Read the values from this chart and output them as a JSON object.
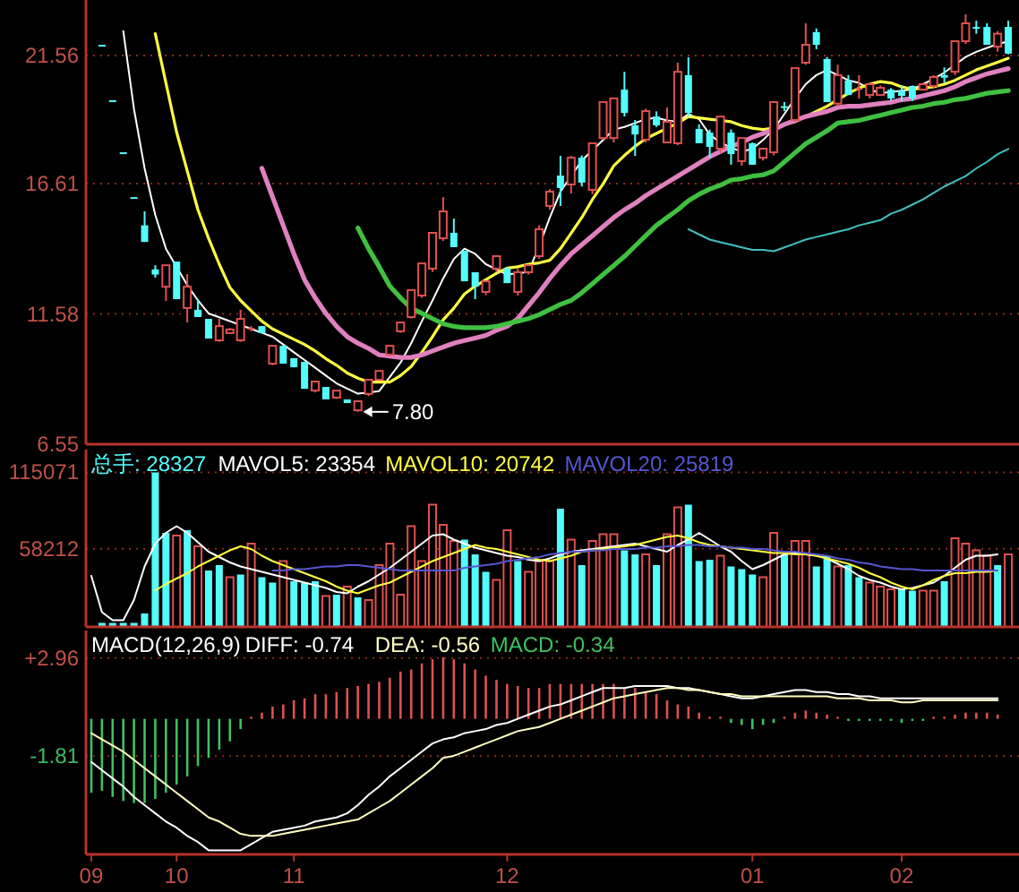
{
  "chart_data": [
    {
      "type": "candlestick",
      "categories": [
        null,
        null,
        null,
        null,
        null,
        null,
        null,
        null,
        null,
        null,
        null,
        null,
        null,
        null,
        null,
        null,
        null,
        null,
        null,
        null,
        null,
        null,
        null,
        null,
        null,
        null,
        null,
        null,
        null,
        null,
        null,
        null,
        null,
        null,
        null,
        null,
        null,
        null,
        null,
        null,
        null,
        null,
        null,
        null,
        null,
        null,
        null,
        null,
        null,
        null,
        null,
        null,
        null,
        null,
        null,
        null,
        null,
        null,
        null,
        null,
        null,
        null,
        null,
        null,
        null,
        null,
        null,
        null,
        null,
        null,
        null,
        null,
        null,
        null,
        null,
        null,
        null,
        null,
        null,
        null,
        null,
        null,
        null,
        null,
        null,
        null,
        null
      ],
      "ohlc": [
        null,
        [
          21.97,
          21.97,
          21.97,
          21.97
        ],
        [
          19.83,
          19.83,
          19.83,
          19.83
        ],
        [
          17.82,
          17.82,
          17.82,
          17.82
        ],
        [
          16.09,
          16.09,
          16.09,
          16.09
        ],
        [
          15.0,
          15.54,
          14.36,
          14.36
        ],
        [
          13.3,
          13.46,
          12.98,
          13.1
        ],
        [
          12.63,
          13.46,
          12.08,
          13.46
        ],
        [
          13.6,
          13.6,
          12.15,
          12.15
        ],
        [
          11.81,
          13.12,
          11.25,
          12.63
        ],
        [
          11.74,
          12.15,
          11.46,
          11.46
        ],
        [
          11.39,
          11.39,
          10.63,
          10.63
        ],
        [
          10.56,
          11.39,
          10.5,
          11.11
        ],
        [
          10.84,
          11.04,
          10.84,
          10.98
        ],
        [
          10.56,
          11.74,
          10.5,
          11.39
        ],
        [
          11.04,
          11.11,
          10.91,
          11.04
        ],
        [
          11.11,
          11.11,
          10.84,
          10.84
        ],
        [
          9.66,
          10.35,
          9.6,
          10.35
        ],
        [
          10.35,
          10.35,
          9.66,
          9.66
        ],
        [
          9.87,
          9.87,
          9.52,
          9.52
        ],
        [
          9.73,
          9.73,
          8.69,
          8.69
        ],
        [
          8.62,
          8.97,
          8.55,
          8.97
        ],
        [
          8.76,
          8.76,
          8.28,
          8.28
        ],
        [
          8.35,
          8.62,
          8.3,
          8.62
        ],
        [
          8.28,
          8.28,
          8.14,
          8.14
        ],
        [
          7.86,
          8.21,
          7.8,
          8.21
        ],
        [
          8.49,
          9.04,
          8.4,
          9.04
        ],
        [
          9.04,
          9.38,
          9.0,
          9.38
        ],
        [
          10.01,
          10.35,
          9.95,
          10.35
        ],
        [
          10.91,
          11.25,
          10.85,
          11.25
        ],
        [
          11.46,
          12.5,
          11.4,
          12.5
        ],
        [
          12.29,
          13.53,
          12.2,
          13.53
        ],
        [
          13.33,
          14.71,
          13.2,
          14.71
        ],
        [
          14.5,
          16.09,
          14.4,
          15.54
        ],
        [
          14.71,
          15.26,
          14.16,
          14.16
        ],
        [
          14.02,
          14.02,
          12.84,
          12.84
        ],
        [
          13.19,
          13.19,
          12.15,
          12.63
        ],
        [
          12.43,
          12.84,
          12.3,
          12.84
        ],
        [
          13.33,
          13.81,
          13.2,
          13.81
        ],
        [
          13.33,
          13.4,
          12.77,
          12.77
        ],
        [
          12.43,
          13.33,
          12.29,
          13.19
        ],
        [
          13.19,
          13.5,
          13.1,
          13.46
        ],
        [
          13.81,
          15.0,
          13.7,
          14.85
        ],
        [
          15.75,
          16.4,
          15.6,
          16.3
        ],
        [
          16.92,
          17.68,
          15.75,
          16.44
        ],
        [
          16.58,
          17.68,
          16.23,
          17.61
        ],
        [
          17.61,
          17.7,
          16.5,
          16.65
        ],
        [
          16.37,
          18.17,
          16.2,
          18.17
        ],
        [
          18.37,
          19.76,
          18.3,
          19.76
        ],
        [
          18.37,
          19.9,
          18.2,
          19.9
        ],
        [
          20.24,
          20.93,
          19.2,
          19.34
        ],
        [
          18.86,
          19.07,
          17.68,
          18.51
        ],
        [
          18.31,
          19.5,
          18.2,
          19.41
        ],
        [
          19.2,
          19.4,
          18.8,
          18.86
        ],
        [
          18.2,
          19.55,
          18.17,
          19.0
        ],
        [
          18.17,
          21.28,
          18.1,
          20.93
        ],
        [
          20.8,
          21.49,
          19.2,
          19.34
        ],
        [
          18.72,
          18.9,
          18.17,
          18.17
        ],
        [
          18.58,
          18.7,
          17.6,
          18.03
        ],
        [
          17.96,
          19.2,
          17.8,
          19.2
        ],
        [
          18.58,
          18.7,
          17.34,
          17.75
        ],
        [
          17.48,
          18.37,
          17.3,
          18.37
        ],
        [
          18.17,
          18.2,
          17.34,
          17.34
        ],
        [
          17.61,
          17.96,
          17.5,
          17.96
        ],
        [
          17.82,
          19.76,
          17.7,
          19.76
        ],
        [
          19.6,
          19.76,
          19.41,
          19.6
        ],
        [
          19.07,
          21.07,
          19.0,
          21.07
        ],
        [
          21.28,
          22.8,
          21.2,
          21.97
        ],
        [
          22.46,
          22.6,
          21.8,
          21.97
        ],
        [
          21.42,
          21.5,
          19.76,
          19.76
        ],
        [
          19.7,
          21.2,
          19.6,
          20.8
        ],
        [
          20.59,
          20.8,
          20.03,
          20.03
        ],
        [
          20.3,
          20.8,
          19.9,
          20.3
        ],
        [
          20.03,
          20.5,
          19.9,
          20.45
        ],
        [
          20.03,
          20.4,
          20.0,
          20.31
        ],
        [
          20.24,
          20.3,
          19.8,
          19.9
        ],
        [
          20.2,
          20.4,
          19.8,
          20.0
        ],
        [
          20.38,
          20.4,
          19.8,
          19.9
        ],
        [
          20.24,
          20.5,
          20.2,
          20.45
        ],
        [
          20.38,
          20.8,
          20.3,
          20.73
        ],
        [
          20.8,
          21.1,
          20.5,
          20.7
        ],
        [
          20.93,
          22.11,
          20.8,
          22.11
        ],
        [
          22.11,
          23.15,
          22.0,
          22.8
        ],
        [
          22.66,
          22.9,
          22.4,
          22.66
        ],
        [
          22.66,
          22.8,
          21.97,
          21.97
        ],
        [
          21.9,
          22.5,
          21.7,
          22.4
        ],
        [
          22.66,
          22.9,
          21.6,
          21.63
        ]
      ],
      "colors": [
        null,
        "#54fcfc",
        "#54fcfc",
        "#54fcfc",
        "#54fcfc",
        "#54fcfc",
        "#54fcfc",
        "#e05050",
        "#54fcfc",
        "#e05050",
        "#54fcfc",
        "#54fcfc",
        "#e05050",
        "#e05050",
        "#e05050",
        "#e05050",
        "#54fcfc",
        "#e05050",
        "#54fcfc",
        "#54fcfc",
        "#54fcfc",
        "#e05050",
        "#54fcfc",
        "#e05050",
        "#54fcfc",
        "#e05050",
        "#e05050",
        "#e05050",
        "#e05050",
        "#e05050",
        "#e05050",
        "#e05050",
        "#e05050",
        "#e05050",
        "#54fcfc",
        "#54fcfc",
        "#54fcfc",
        "#e05050",
        "#e05050",
        "#54fcfc",
        "#e05050",
        "#e05050",
        "#e05050",
        "#e05050",
        "#54fcfc",
        "#e05050",
        "#54fcfc",
        "#e05050",
        "#e05050",
        "#e05050",
        "#54fcfc",
        "#54fcfc",
        "#e05050",
        "#54fcfc",
        "#e05050",
        "#e05050",
        "#54fcfc",
        "#54fcfc",
        "#54fcfc",
        "#e05050",
        "#54fcfc",
        "#e05050",
        "#54fcfc",
        "#e05050",
        "#e05050",
        "#54fcfc",
        "#e05050",
        "#e05050",
        "#54fcfc",
        "#54fcfc",
        "#e05050",
        "#54fcfc",
        "#e05050",
        "#e05050",
        "#e05050",
        "#54fcfc",
        "#54fcfc",
        "#54fcfc",
        "#e05050",
        "#e05050",
        "#54fcfc",
        "#e05050",
        "#e05050",
        "#54fcfc",
        "#54fcfc",
        "#e05050",
        "#54fcfc"
      ],
      "ylim": [
        6.55,
        23.7
      ],
      "yticks": [
        6.55,
        11.58,
        16.61,
        21.56
      ],
      "grid": "y",
      "tick_labels": "y",
      "series": [
        {
          "type": "line",
          "color": "#ffffff",
          "values": [
            null,
            null,
            null,
            22.5,
            19.5,
            17.2,
            15.4,
            14.1,
            13.4,
            12.7,
            12.1,
            11.6,
            11.45,
            11.3,
            11.15,
            11.0,
            10.85,
            10.7,
            10.4,
            10.1,
            9.8,
            9.5,
            9.2,
            8.9,
            8.7,
            8.5,
            8.55,
            8.6,
            9.15,
            9.7,
            10.45,
            11.3,
            12.1,
            12.95,
            13.7,
            14.1,
            13.9,
            13.5,
            13.3,
            13.1,
            13.15,
            13.2,
            14.2,
            15.3,
            16.3,
            16.9,
            17.5,
            17.9,
            18.3,
            18.7,
            18.8,
            18.95,
            19.1,
            19.15,
            19.05,
            19.0,
            19.3,
            19.1,
            18.5,
            18.2,
            18.0,
            17.85,
            17.95,
            18.3,
            18.7,
            19.3,
            19.9,
            20.45,
            20.8,
            21.0,
            20.8,
            20.6,
            20.5,
            20.25,
            20.1,
            20.15,
            20.2,
            20.25,
            20.45,
            20.65,
            20.9,
            21.2,
            21.5,
            21.7,
            21.85,
            22.0,
            22.1
          ]
        },
        {
          "type": "line",
          "color": "#ffff40",
          "values": [
            null,
            null,
            null,
            null,
            null,
            null,
            22.4,
            20.5,
            18.6,
            17.1,
            15.6,
            14.5,
            13.5,
            12.6,
            12.1,
            11.7,
            11.3,
            11.0,
            10.8,
            10.6,
            10.4,
            10.15,
            9.85,
            9.6,
            9.3,
            9.1,
            8.95,
            8.95,
            8.95,
            9.2,
            9.55,
            10.1,
            10.7,
            11.35,
            11.8,
            12.35,
            12.65,
            12.9,
            13.15,
            13.35,
            13.4,
            13.5,
            13.55,
            13.65,
            14.1,
            14.7,
            15.3,
            16.0,
            16.6,
            17.3,
            17.7,
            18.05,
            18.35,
            18.55,
            18.75,
            18.95,
            19.2,
            19.15,
            19.1,
            19.05,
            19.0,
            18.85,
            18.75,
            18.7,
            18.75,
            18.9,
            19.0,
            19.2,
            19.4,
            19.6,
            19.85,
            20.1,
            20.3,
            20.45,
            20.55,
            20.5,
            20.35,
            20.25,
            20.3,
            20.35,
            20.45,
            20.6,
            20.8,
            21.0,
            21.15,
            21.3,
            21.45
          ]
        },
        {
          "type": "line",
          "color": "#e080c0",
          "values": [
            null,
            null,
            null,
            null,
            null,
            null,
            null,
            null,
            null,
            null,
            null,
            null,
            null,
            null,
            null,
            null,
            17.2,
            16.1,
            15.0,
            13.9,
            12.9,
            12.2,
            11.6,
            11.1,
            10.7,
            10.45,
            10.25,
            10.0,
            9.95,
            9.9,
            9.9,
            10.0,
            10.15,
            10.3,
            10.45,
            10.55,
            10.65,
            10.75,
            10.95,
            11.1,
            11.4,
            11.9,
            12.4,
            12.95,
            13.45,
            13.9,
            14.25,
            14.6,
            14.95,
            15.3,
            15.6,
            15.85,
            16.15,
            16.4,
            16.65,
            16.9,
            17.15,
            17.4,
            17.65,
            17.85,
            18.05,
            18.2,
            18.4,
            18.55,
            18.7,
            18.9,
            19.05,
            19.2,
            19.3,
            19.4,
            19.55,
            19.6,
            19.6,
            19.65,
            19.7,
            19.75,
            19.85,
            19.9,
            20.0,
            20.1,
            20.2,
            20.35,
            20.55,
            20.7,
            20.85,
            20.95,
            21.05
          ]
        },
        {
          "type": "line",
          "color": "#40c040",
          "values": [
            null,
            null,
            null,
            null,
            null,
            null,
            null,
            null,
            null,
            null,
            null,
            null,
            null,
            null,
            null,
            null,
            null,
            null,
            null,
            null,
            null,
            null,
            null,
            null,
            null,
            14.9,
            14.1,
            13.4,
            12.65,
            12.2,
            11.8,
            11.6,
            11.4,
            11.2,
            11.1,
            11.05,
            11.05,
            11.05,
            11.1,
            11.2,
            11.3,
            11.4,
            11.55,
            11.75,
            11.95,
            12.1,
            12.4,
            12.75,
            13.1,
            13.45,
            13.8,
            14.2,
            14.6,
            15.0,
            15.3,
            15.6,
            15.95,
            16.2,
            16.4,
            16.55,
            16.75,
            16.8,
            16.9,
            16.95,
            17.1,
            17.45,
            17.8,
            18.15,
            18.4,
            18.65,
            18.95,
            19.0,
            19.05,
            19.15,
            19.25,
            19.35,
            19.45,
            19.55,
            19.6,
            19.7,
            19.75,
            19.85,
            19.9,
            20.0,
            20.1,
            20.15,
            20.2
          ]
        },
        {
          "type": "line",
          "color": "#40c0c0",
          "values": [
            null,
            null,
            null,
            null,
            null,
            null,
            null,
            null,
            null,
            null,
            null,
            null,
            null,
            null,
            null,
            null,
            null,
            null,
            null,
            null,
            null,
            null,
            null,
            null,
            null,
            null,
            null,
            null,
            null,
            null,
            null,
            null,
            null,
            null,
            null,
            null,
            null,
            null,
            null,
            null,
            null,
            null,
            null,
            null,
            null,
            null,
            null,
            null,
            null,
            null,
            null,
            null,
            null,
            null,
            null,
            null,
            14.85,
            14.65,
            14.45,
            14.35,
            14.25,
            14.15,
            14.05,
            14.05,
            14.0,
            14.15,
            14.3,
            14.45,
            14.55,
            14.65,
            14.75,
            14.85,
            15.0,
            15.1,
            15.2,
            15.45,
            15.6,
            15.8,
            16.0,
            16.25,
            16.5,
            16.7,
            16.9,
            17.2,
            17.45,
            17.75,
            17.95
          ]
        }
      ],
      "annotations": [
        "7.80"
      ]
    },
    {
      "type": "bar",
      "categories": [
        null,
        null,
        null,
        null,
        null,
        null,
        null,
        null,
        null,
        null,
        null,
        null,
        null,
        null,
        null,
        null,
        null,
        null,
        null,
        null,
        null,
        null,
        null,
        null,
        null,
        null,
        null,
        null,
        null,
        null,
        null,
        null,
        null,
        null,
        null,
        null,
        null,
        null,
        null,
        null,
        null,
        null,
        null,
        null,
        null,
        null,
        null,
        null,
        null,
        null,
        null,
        null,
        null,
        null,
        null,
        null,
        null,
        null,
        null,
        null,
        null,
        null,
        null,
        null,
        null,
        null,
        null,
        null,
        null,
        null,
        null,
        null,
        null,
        null,
        null,
        null,
        null,
        null,
        null,
        null,
        null,
        null,
        null,
        null,
        null,
        null,
        null
      ],
      "ylim": [
        0,
        132000
      ],
      "yticks": [
        58212,
        115071
      ],
      "grid": "y",
      "tick_labels": "y",
      "legend": "top left",
      "series": [
        {
          "name": "总手: 28327",
          "color": "#54fcfc",
          "values": [
            null,
            3000,
            3000,
            3000,
            3000,
            10000,
            115000,
            70000,
            68000,
            72000,
            60000,
            42000,
            46000,
            37000,
            39000,
            62000,
            37000,
            33000,
            49000,
            34000,
            33000,
            34000,
            23000,
            24000,
            30000,
            22000,
            20000,
            46000,
            62000,
            24000,
            75000,
            49000,
            91000,
            76000,
            64000,
            65000,
            54000,
            41000,
            35000,
            72000,
            49000,
            41000,
            49000,
            49000,
            88000,
            65000,
            46000,
            64000,
            69000,
            69000,
            57000,
            54000,
            54000,
            46000,
            69000,
            89000,
            91000,
            49000,
            50000,
            53000,
            45000,
            43000,
            39000,
            37000,
            70000,
            54000,
            64000,
            64000,
            45000,
            53000,
            45000,
            46000,
            37000,
            33000,
            30000,
            28000,
            28000,
            27000,
            27000,
            27000,
            34000,
            66000,
            62000,
            57000,
            53000,
            46000,
            54000
          ],
          "colors": [
            null,
            "#54fcfc",
            "#54fcfc",
            "#54fcfc",
            "#54fcfc",
            "#54fcfc",
            "#54fcfc",
            "#54fcfc",
            "#e05050",
            "#54fcfc",
            "#e05050",
            "#54fcfc",
            "#54fcfc",
            "#e05050",
            "#54fcfc",
            "#e05050",
            "#54fcfc",
            "#54fcfc",
            "#e05050",
            "#54fcfc",
            "#54fcfc",
            "#54fcfc",
            "#e05050",
            "#54fcfc",
            "#e05050",
            "#54fcfc",
            "#e05050",
            "#e05050",
            "#e05050",
            "#e05050",
            "#e05050",
            "#e05050",
            "#e05050",
            "#e05050",
            "#e05050",
            "#54fcfc",
            "#54fcfc",
            "#54fcfc",
            "#e05050",
            "#e05050",
            "#54fcfc",
            "#e05050",
            "#e05050",
            "#e05050",
            "#54fcfc",
            "#e05050",
            "#54fcfc",
            "#e05050",
            "#e05050",
            "#e05050",
            "#54fcfc",
            "#54fcfc",
            "#e05050",
            "#54fcfc",
            "#e05050",
            "#e05050",
            "#54fcfc",
            "#54fcfc",
            "#54fcfc",
            "#e05050",
            "#54fcfc",
            "#54fcfc",
            "#54fcfc",
            "#e05050",
            "#e05050",
            "#54fcfc",
            "#e05050",
            "#e05050",
            "#54fcfc",
            "#54fcfc",
            "#e05050",
            "#54fcfc",
            "#54fcfc",
            "#e05050",
            "#e05050",
            "#e05050",
            "#54fcfc",
            "#54fcfc",
            "#e05050",
            "#e05050",
            "#54fcfc",
            "#e05050",
            "#e05050",
            "#e05050",
            "#e05050",
            "#54fcfc",
            "#e05050"
          ]
        },
        {
          "name": "MAVOL5: 23354",
          "type": "line",
          "color": "#ffffff",
          "values": [
            38000,
            11000,
            5000,
            5000,
            20000,
            45000,
            62000,
            70000,
            75000,
            70000,
            63000,
            56000,
            52000,
            48000,
            45000,
            43000,
            41000,
            39000,
            37000,
            35000,
            33000,
            31000,
            29000,
            26000,
            25000,
            30000,
            34000,
            39000,
            44000,
            50000,
            56000,
            62000,
            68000,
            69000,
            65000,
            62000,
            59000,
            57000,
            55000,
            53000,
            52000,
            50000,
            49000,
            51000,
            54000,
            56000,
            57000,
            58000,
            59000,
            60000,
            61000,
            62000,
            60000,
            58000,
            56000,
            61000,
            65000,
            70000,
            65000,
            60000,
            56000,
            49000,
            43000,
            46000,
            50000,
            54000,
            55000,
            54000,
            53000,
            51000,
            47000,
            43000,
            38000,
            35000,
            33000,
            30000,
            28000,
            29000,
            31000,
            33000,
            38000,
            44000,
            50000,
            53000,
            53000,
            54000,
            null
          ]
        },
        {
          "name": "MAVOL10: 20742",
          "type": "line",
          "color": "#ffff40",
          "values": [
            null,
            null,
            null,
            null,
            null,
            null,
            27000,
            32000,
            36000,
            40000,
            45000,
            49000,
            53000,
            57000,
            60000,
            58000,
            53000,
            49000,
            46000,
            43000,
            40000,
            37000,
            34000,
            30000,
            27000,
            25000,
            28000,
            31000,
            33000,
            37000,
            41000,
            45000,
            49000,
            52000,
            55000,
            58000,
            61000,
            59000,
            58000,
            56000,
            54000,
            52000,
            50000,
            49000,
            51000,
            53000,
            56000,
            57000,
            58000,
            59000,
            60000,
            61000,
            63000,
            65000,
            67000,
            68000,
            66000,
            63000,
            61000,
            60000,
            59000,
            58000,
            57000,
            56000,
            55000,
            55000,
            54000,
            54000,
            53000,
            51000,
            49000,
            47000,
            44000,
            40000,
            37000,
            33000,
            30000,
            28000,
            31000,
            35000,
            38000,
            40000,
            40000,
            41000,
            41000,
            42000,
            null
          ]
        },
        {
          "name": "MAVOL20: 25819",
          "type": "line",
          "color": "#5656d0",
          "values": [
            null,
            null,
            null,
            null,
            null,
            null,
            null,
            null,
            null,
            null,
            null,
            null,
            null,
            null,
            null,
            null,
            null,
            42000,
            42000,
            43000,
            43000,
            44000,
            45000,
            45000,
            46000,
            46000,
            45000,
            44000,
            43000,
            42000,
            42000,
            42000,
            42000,
            42000,
            42000,
            44000,
            45000,
            46000,
            47000,
            49000,
            50000,
            51000,
            52000,
            54000,
            55000,
            56000,
            56000,
            57000,
            57000,
            58000,
            58000,
            58000,
            59000,
            59000,
            60000,
            60000,
            61000,
            61000,
            60000,
            60000,
            59000,
            59000,
            58000,
            58000,
            57000,
            56000,
            56000,
            55000,
            54000,
            53000,
            51000,
            50000,
            48000,
            47000,
            45000,
            44000,
            43000,
            43000,
            42000,
            42000,
            42000,
            42000,
            42000,
            42000,
            42000,
            42000,
            null
          ]
        }
      ]
    },
    {
      "type": "bar",
      "title": "MACD(12,26,9)",
      "categories": [
        "09",
        null,
        null,
        null,
        null,
        null,
        null,
        null,
        "10",
        null,
        null,
        null,
        null,
        null,
        null,
        null,
        null,
        null,
        null,
        "11",
        null,
        null,
        null,
        null,
        null,
        null,
        null,
        null,
        null,
        null,
        null,
        null,
        null,
        null,
        null,
        null,
        null,
        null,
        null,
        "12",
        null,
        null,
        null,
        null,
        null,
        null,
        null,
        null,
        null,
        null,
        null,
        null,
        null,
        null,
        null,
        null,
        null,
        null,
        null,
        null,
        null,
        null,
        "01",
        null,
        null,
        null,
        null,
        null,
        null,
        null,
        null,
        null,
        null,
        null,
        null,
        null,
        "02",
        null,
        null,
        null,
        null,
        null,
        null,
        null,
        null,
        null,
        null
      ],
      "ylim": [
        -6.6,
        4.3
      ],
      "yticks": [
        -1.81,
        {
          "value": 2.96,
          "label": "+2.96"
        }
      ],
      "grid": "y",
      "legend": "top left",
      "series": [
        {
          "name": "DIFF: -0.74",
          "type": "line",
          "color": "#ffffff",
          "values": [
            -2.1,
            -2.5,
            -2.9,
            -3.3,
            -3.8,
            -4.2,
            -4.6,
            -5.0,
            -5.3,
            -5.7,
            -6.0,
            -6.4,
            -6.4,
            -6.4,
            -6.4,
            -6.1,
            -5.8,
            -5.5,
            -5.4,
            -5.3,
            -5.2,
            -5.0,
            -4.9,
            -4.8,
            -4.6,
            -4.2,
            -3.7,
            -3.3,
            -2.8,
            -2.4,
            -2.0,
            -1.6,
            -1.2,
            -1.0,
            -0.9,
            -0.7,
            -0.6,
            -0.5,
            -0.3,
            -0.2,
            0.0,
            0.2,
            0.4,
            0.6,
            0.7,
            0.9,
            1.1,
            1.3,
            1.5,
            1.5,
            1.5,
            1.6,
            1.6,
            1.6,
            1.6,
            1.5,
            1.5,
            1.4,
            1.3,
            1.2,
            1.1,
            1.0,
            1.0,
            1.1,
            1.2,
            1.3,
            1.4,
            1.4,
            1.3,
            1.3,
            1.2,
            1.2,
            1.1,
            1.1,
            1.0,
            1.0,
            1.0,
            1.0,
            1.0,
            1.0,
            1.0,
            1.0,
            1.0,
            1.0,
            1.0,
            1.0,
            null
          ]
        },
        {
          "name": "DEA: -0.56",
          "type": "line",
          "color": "#ffffc0",
          "values": [
            -0.7,
            -1.0,
            -1.3,
            -1.6,
            -2.0,
            -2.4,
            -2.8,
            -3.2,
            -3.6,
            -4.0,
            -4.4,
            -4.8,
            -5.0,
            -5.3,
            -5.6,
            -5.7,
            -5.7,
            -5.7,
            -5.6,
            -5.5,
            -5.4,
            -5.3,
            -5.2,
            -5.1,
            -5.0,
            -4.9,
            -4.6,
            -4.3,
            -4.0,
            -3.6,
            -3.2,
            -2.8,
            -2.4,
            -1.9,
            -1.8,
            -1.6,
            -1.4,
            -1.2,
            -1.0,
            -0.8,
            -0.6,
            -0.5,
            -0.4,
            -0.2,
            0.0,
            0.2,
            0.4,
            0.6,
            0.8,
            1.0,
            1.1,
            1.2,
            1.3,
            1.4,
            1.5,
            1.5,
            1.4,
            1.4,
            1.3,
            1.2,
            1.2,
            1.1,
            1.1,
            1.1,
            1.1,
            1.1,
            1.1,
            1.1,
            1.1,
            1.1,
            1.0,
            1.0,
            1.0,
            0.9,
            0.9,
            0.9,
            0.8,
            0.8,
            0.9,
            0.9,
            0.9,
            0.9,
            0.9,
            0.9,
            0.9,
            0.9,
            null
          ]
        },
        {
          "name": "MACD: -0.34",
          "color": "#40c060",
          "values": [
            -3.6,
            -3.5,
            -3.8,
            -4.0,
            -4.1,
            -4.1,
            -3.9,
            -3.6,
            -3.2,
            -2.8,
            -2.3,
            -1.9,
            -1.5,
            -1.1,
            -0.5,
            0.1,
            0.3,
            0.6,
            0.7,
            0.9,
            1.0,
            1.2,
            1.2,
            1.3,
            1.5,
            1.6,
            1.7,
            1.8,
            2.0,
            2.3,
            2.4,
            2.7,
            2.9,
            3.0,
            2.9,
            2.7,
            2.4,
            2.1,
            1.9,
            1.7,
            1.6,
            1.5,
            1.5,
            1.7,
            1.7,
            1.7,
            1.7,
            1.7,
            1.7,
            1.7,
            1.5,
            1.5,
            1.3,
            1.2,
            0.9,
            0.7,
            0.6,
            0.3,
            0.1,
            0.1,
            -0.2,
            -0.3,
            -0.5,
            -0.3,
            -0.2,
            0.1,
            0.3,
            0.4,
            0.3,
            0.2,
            0.1,
            -0.1,
            -0.1,
            -0.1,
            -0.1,
            -0.1,
            -0.2,
            -0.1,
            -0.1,
            0.1,
            0.1,
            0.2,
            0.3,
            0.3,
            0.3,
            0.2,
            null
          ],
          "colors": [
            "#40c060",
            "#40c060",
            "#40c060",
            "#40c060",
            "#40c060",
            "#40c060",
            "#40c060",
            "#40c060",
            "#40c060",
            "#40c060",
            "#40c060",
            "#40c060",
            "#40c060",
            "#40c060",
            "#40c060",
            "#e05050",
            "#e05050",
            "#e05050",
            "#e05050",
            "#e05050",
            "#e05050",
            "#e05050",
            "#e05050",
            "#e05050",
            "#e05050",
            "#e05050",
            "#e05050",
            "#e05050",
            "#e05050",
            "#e05050",
            "#e05050",
            "#e05050",
            "#e05050",
            "#e05050",
            "#e05050",
            "#e05050",
            "#e05050",
            "#e05050",
            "#e05050",
            "#e05050",
            "#e05050",
            "#e05050",
            "#e05050",
            "#e05050",
            "#e05050",
            "#e05050",
            "#e05050",
            "#e05050",
            "#e05050",
            "#e05050",
            "#e05050",
            "#e05050",
            "#e05050",
            "#e05050",
            "#e05050",
            "#e05050",
            "#e05050",
            "#e05050",
            "#e05050",
            "#e05050",
            "#40c060",
            "#40c060",
            "#40c060",
            "#40c060",
            "#40c060",
            "#e05050",
            "#e05050",
            "#e05050",
            "#e05050",
            "#e05050",
            "#e05050",
            "#40c060",
            "#40c060",
            "#40c060",
            "#40c060",
            "#40c060",
            "#40c060",
            "#40c060",
            "#40c060",
            "#e05050",
            "#e05050",
            "#e05050",
            "#e05050",
            "#e05050",
            "#e05050",
            "#e05050",
            null
          ]
        }
      ]
    }
  ]
}
